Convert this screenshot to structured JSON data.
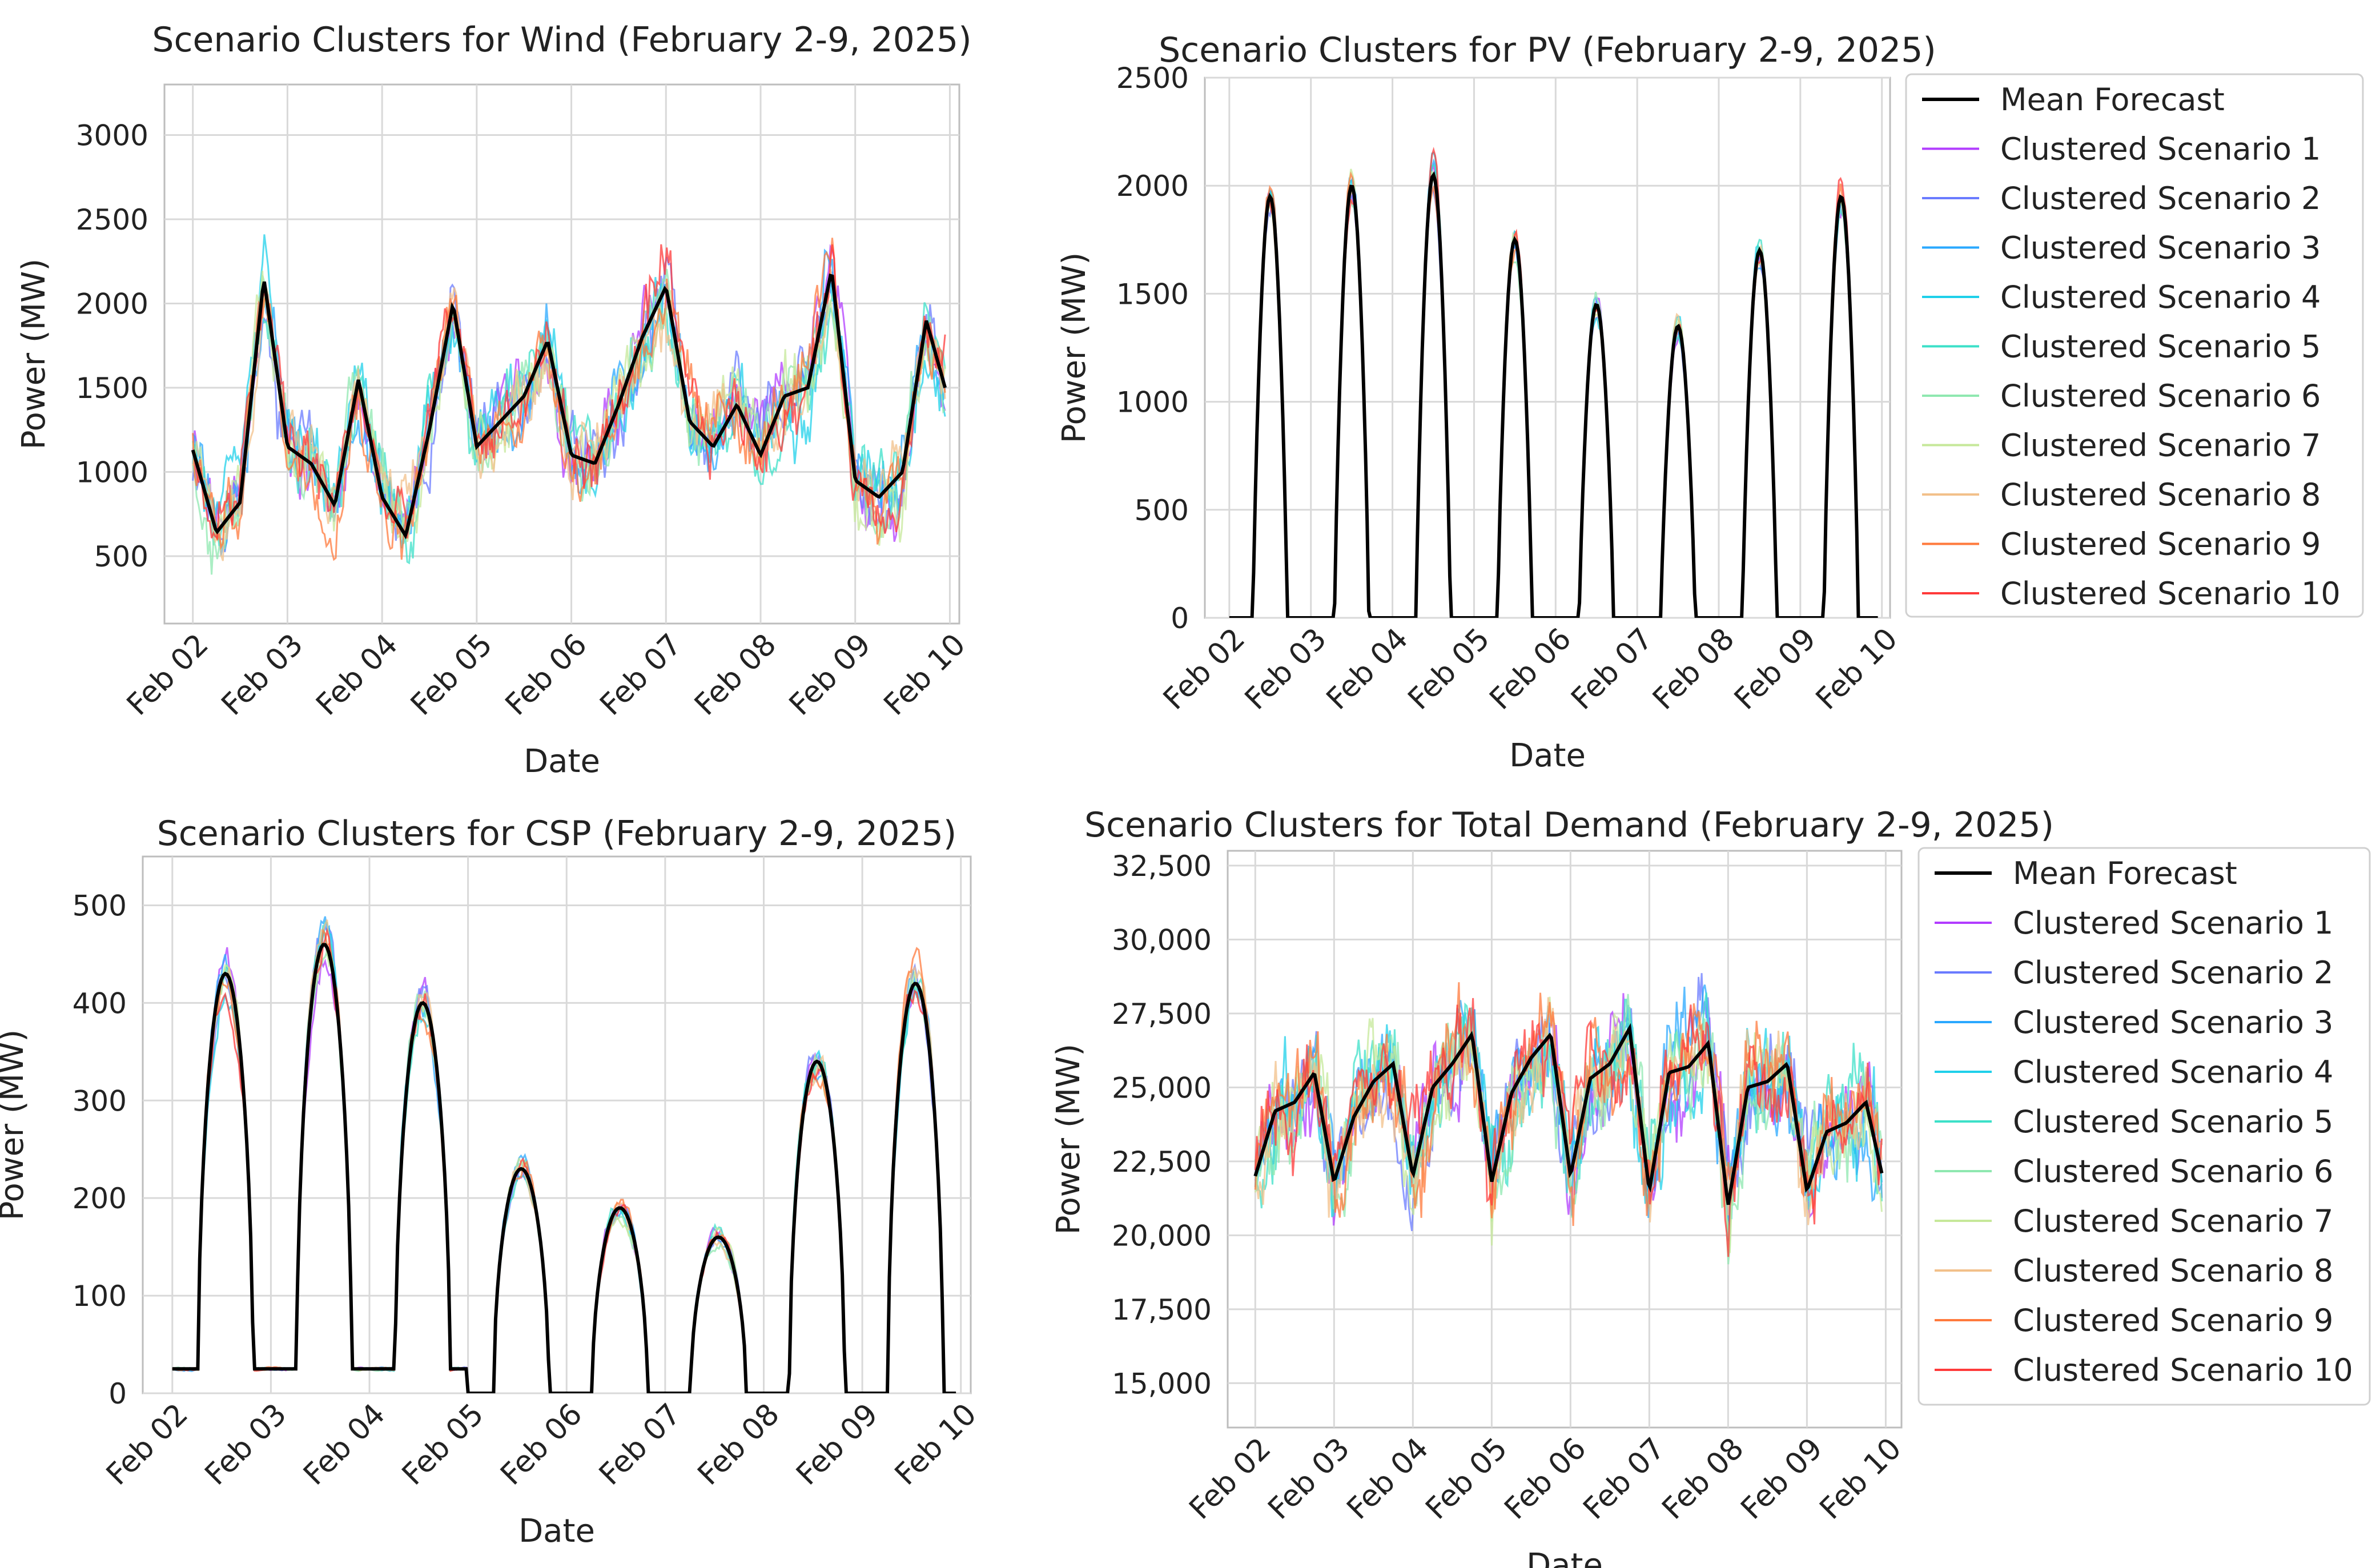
{
  "chart_data": [
    {
      "id": "wind",
      "type": "line",
      "title": "Scenario Clusters for Wind (February 2-9, 2025)",
      "xlabel": "Date",
      "ylabel": "Power (MW)",
      "xlim": [
        -0.3,
        8.1
      ],
      "ylim": [
        100,
        3300
      ],
      "yticks": [
        500,
        1000,
        1500,
        2000,
        2500,
        3000
      ],
      "ytick_labels": [
        "500",
        "1000",
        "1500",
        "2000",
        "2500",
        "3000"
      ],
      "xtick_labels": [
        "Feb 02",
        "Feb 03",
        "Feb 04",
        "Feb 05",
        "Feb 06",
        "Feb 07",
        "Feb 08",
        "Feb 09",
        "Feb 10"
      ],
      "grid": true,
      "legend": "none",
      "x": [
        0,
        0.25,
        0.5,
        0.75,
        1,
        1.25,
        1.5,
        1.75,
        2,
        2.25,
        2.5,
        2.75,
        3,
        3.25,
        3.5,
        3.75,
        4,
        4.25,
        4.5,
        4.75,
        5,
        5.25,
        5.5,
        5.75,
        6,
        6.25,
        6.5,
        6.75,
        7,
        7.25,
        7.5,
        7.75,
        8
      ],
      "series": [
        {
          "name": "Mean Forecast",
          "values": [
            1130,
            640,
            820,
            2150,
            1150,
            1050,
            800,
            1550,
            850,
            620,
            1250,
            2000,
            1150,
            1300,
            1450,
            1780,
            1100,
            1050,
            1400,
            1800,
            2100,
            1300,
            1150,
            1400,
            1100,
            1450,
            1500,
            2200,
            950,
            850,
            1000,
            1900,
            1400
          ]
        }
      ],
      "scenario_spread": 350
    },
    {
      "id": "pv",
      "type": "line",
      "title": "Scenario Clusters for PV (February 2-9, 2025)",
      "xlabel": "Date",
      "ylabel": "Power (MW)",
      "xlim": [
        -0.3,
        8.1
      ],
      "ylim": [
        0,
        2500
      ],
      "yticks": [
        0,
        500,
        1000,
        1500,
        2000,
        2500
      ],
      "ytick_labels": [
        "0",
        "500",
        "1000",
        "1500",
        "2000",
        "2500"
      ],
      "xtick_labels": [
        "Feb 02",
        "Feb 03",
        "Feb 04",
        "Feb 05",
        "Feb 06",
        "Feb 07",
        "Feb 08",
        "Feb 09",
        "Feb 10"
      ],
      "grid": true,
      "legend": "right",
      "daily_peaks": [
        1950,
        2000,
        2050,
        1750,
        1450,
        1350,
        1700,
        1950
      ],
      "series": [
        {
          "name": "Mean Forecast"
        }
      ],
      "scenario_spread": 120
    },
    {
      "id": "csp",
      "type": "line",
      "title": "Scenario Clusters for CSP (February 2-9, 2025)",
      "xlabel": "Date",
      "ylabel": "Power (MW)",
      "xlim": [
        -0.3,
        8.1
      ],
      "ylim": [
        0,
        550
      ],
      "yticks": [
        0,
        100,
        200,
        300,
        400,
        500
      ],
      "ytick_labels": [
        "0",
        "100",
        "200",
        "300",
        "400",
        "500"
      ],
      "xtick_labels": [
        "Feb 02",
        "Feb 03",
        "Feb 04",
        "Feb 05",
        "Feb 06",
        "Feb 07",
        "Feb 08",
        "Feb 09",
        "Feb 10"
      ],
      "grid": true,
      "legend": "none",
      "daily_peaks": [
        430,
        460,
        400,
        230,
        190,
        160,
        340,
        420
      ],
      "series": [
        {
          "name": "Mean Forecast"
        }
      ],
      "scenario_spread": 35
    },
    {
      "id": "demand",
      "type": "line",
      "title": "Scenario Clusters for Total Demand (February 2-9, 2025)",
      "xlabel": "Date",
      "ylabel": "Power (MW)",
      "xlim": [
        -0.35,
        8.2
      ],
      "ylim": [
        13500,
        33000
      ],
      "yticks": [
        15000,
        17500,
        20000,
        22500,
        25000,
        27500,
        30000,
        32500
      ],
      "ytick_labels": [
        "15,000",
        "17,500",
        "20,000",
        "22,500",
        "25,000",
        "27,500",
        "30,000",
        "32,500"
      ],
      "xtick_labels": [
        "Feb 02",
        "Feb 03",
        "Feb 04",
        "Feb 05",
        "Feb 06",
        "Feb 07",
        "Feb 08",
        "Feb 09",
        "Feb 10"
      ],
      "grid": true,
      "legend": "right",
      "x": [
        0,
        0.25,
        0.5,
        0.75,
        1,
        1.25,
        1.5,
        1.75,
        2,
        2.25,
        2.5,
        2.75,
        3,
        3.25,
        3.5,
        3.75,
        4,
        4.25,
        4.5,
        4.75,
        5,
        5.25,
        5.5,
        5.75,
        6,
        6.25,
        6.5,
        6.75,
        7,
        7.25,
        7.5,
        7.75,
        8
      ],
      "series": [
        {
          "name": "Mean Forecast",
          "values": [
            22000,
            24200,
            24500,
            25500,
            21800,
            24000,
            25200,
            25800,
            22000,
            25000,
            25800,
            26800,
            21800,
            24800,
            26000,
            26800,
            22000,
            25300,
            25800,
            27000,
            21500,
            25500,
            25700,
            26500,
            21000,
            25000,
            25200,
            25800,
            21500,
            23500,
            23800,
            24500,
            21500
          ]
        }
      ],
      "scenario_spread": 2600
    }
  ],
  "legend": {
    "pv": {
      "items": [
        "Mean Forecast",
        "Clustered Scenario 1",
        "Clustered Scenario 2",
        "Clustered Scenario 3",
        "Clustered Scenario 4",
        "Clustered Scenario 5",
        "Clustered Scenario 6",
        "Clustered Scenario 7",
        "Clustered Scenario 8",
        "Clustered Scenario 9",
        "Clustered Scenario 10"
      ]
    },
    "demand": {
      "items": [
        "Mean Forecast",
        "Clustered Scenario 1",
        "Clustered Scenario 2",
        "Clustered Scenario 3",
        "Clustered Scenario 4",
        "Clustered Scenario 5",
        "Clustered Scenario 6",
        "Clustered Scenario 7",
        "Clustered Scenario 8",
        "Clustered Scenario 9",
        "Clustered Scenario 10"
      ]
    }
  },
  "colors": {
    "mean": "#000000",
    "scenarios": [
      "#b23cff",
      "#6a7bff",
      "#2aa8ff",
      "#1fd0ea",
      "#3ce0c8",
      "#8fe8b0",
      "#c6e89a",
      "#f2c08a",
      "#ff7a3c",
      "#ff3a3a"
    ],
    "grid": "#d9d9d9",
    "axis": "#bdbdbd"
  }
}
